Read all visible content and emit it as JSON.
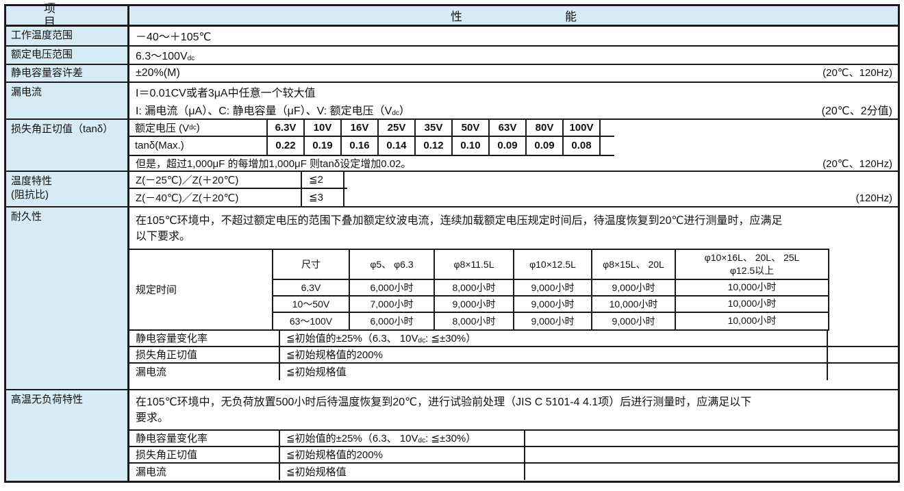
{
  "colors": {
    "header_bg": "#d6ebf6",
    "line": "#1a1a1a",
    "text": "#111111"
  },
  "header": {
    "item": "项目",
    "performance": "性能"
  },
  "operating_temp": {
    "label": "工作温度范围",
    "value": "－40～＋105℃"
  },
  "rated_voltage": {
    "label": "额定电压范围",
    "value_pre": "6.3～100V",
    "value_sub": "dc"
  },
  "capacitance_tolerance": {
    "label": "静电容量容许差",
    "value": "±20%(M)",
    "condition": "(20℃、120Hz)"
  },
  "leakage_current": {
    "label": "漏电流",
    "line1": "I＝0.01CV或者3μA中任意一个较大值",
    "line2_pre": "I: 漏电流（μA）、C: 静电容量（μF）、V: 额定电压（V",
    "line2_sub": "dc",
    "line2_post": "）",
    "condition": "(20℃、2分值)"
  },
  "tan_delta": {
    "label": "损失角正切值（tanδ）",
    "header_pre": "额定电压 (V",
    "header_sub": "dc",
    "header_post": ")",
    "voltages": [
      "6.3V",
      "10V",
      "16V",
      "25V",
      "35V",
      "50V",
      "63V",
      "80V",
      "100V"
    ],
    "row_label": "tanδ(Max.)",
    "values": [
      "0.22",
      "0.19",
      "0.16",
      "0.14",
      "0.12",
      "0.10",
      "0.09",
      "0.09",
      "0.08"
    ],
    "note": "但是，超过1,000μF 的每增加1,000μF 则tanδ设定增加0.02。",
    "condition": "(20℃、120Hz)"
  },
  "temp_characteristics": {
    "label_line1": "温度特性",
    "label_line2": "(阻抗比)",
    "rows": [
      {
        "label": "Z(－25℃)／Z(＋20℃)",
        "value": "≦2"
      },
      {
        "label": "Z(－40℃)／Z(＋20℃)",
        "value": "≦3"
      }
    ],
    "condition": "(120Hz)"
  },
  "endurance": {
    "label": "耐久性",
    "intro_line1": "在105℃环境中，不超过额定电压的范围下叠加额定纹波电流，连续加载额定电压规定时间后，待温度恢复到20℃进行测量时，应满足",
    "intro_line2": "以下要求。",
    "time_table": {
      "label": "规定时间",
      "size_header": "尺寸",
      "size_cols": [
        "φ5、 φ6.3",
        "φ8×11.5L",
        "φ10×12.5L",
        "φ8×15L、 20L"
      ],
      "size_col_last_line1": "φ10×16L、 20L、 25L",
      "size_col_last_line2": "φ12.5以上",
      "rows": [
        [
          "6.3V",
          "6,000小时",
          "8,000小时",
          "9,000小时",
          "9,000小时",
          "10,000小时"
        ],
        [
          "10～50V",
          "7,000小时",
          "9,000小时",
          "9,000小时",
          "10,000小时",
          "10,000小时"
        ],
        [
          "63～100V",
          "6,000小时",
          "8,000小时",
          "9,000小时",
          "9,000小时",
          "10,000小时"
        ]
      ]
    },
    "specs": [
      {
        "label": "静电容量变化率",
        "value_pre": "≦初始值的±25%（6.3、 10V",
        "value_sub": "dc",
        "value_post": ": ≦±30%）"
      },
      {
        "label": "损失角正切值",
        "value_pre": "≦初始规格值的200%",
        "value_sub": "",
        "value_post": ""
      },
      {
        "label": "漏电流",
        "value_pre": "≦初始规格值",
        "value_sub": "",
        "value_post": ""
      }
    ]
  },
  "high_temp_no_load": {
    "label": "高温无负荷特性",
    "intro_line1": "在105℃环境中，无负荷放置500小时后待温度恢复到20℃，进行试验前处理（JIS C 5101-4 4.1项）后进行测量时，应满足以下",
    "intro_line2": "要求。",
    "specs": [
      {
        "label": "静电容量变化率",
        "value_pre": "≦初始值的±25%（6.3、 10V",
        "value_sub": "dc",
        "value_post": ": ≦±30%）"
      },
      {
        "label": "损失角正切值",
        "value_pre": "≦初始规格值的200%",
        "value_sub": "",
        "value_post": ""
      },
      {
        "label": "漏电流",
        "value_pre": "≦初始规格值",
        "value_sub": "",
        "value_post": ""
      }
    ]
  }
}
